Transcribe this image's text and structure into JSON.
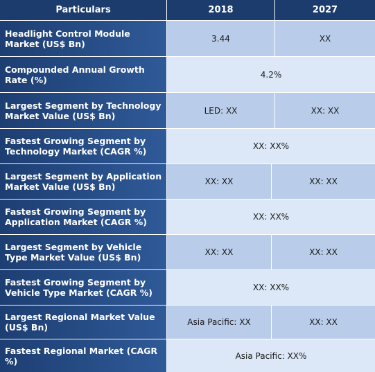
{
  "header": {
    "col0": "Particulars",
    "col1": "2018",
    "col2": "2027"
  },
  "rows": [
    {
      "label": "Headlight Control Module Market (US$ Bn)",
      "v2018": "3.44",
      "v2027": "XX"
    },
    {
      "label": "Compounded Annual Growth Rate (%)",
      "merged": "4.2%"
    },
    {
      "label": "Largest Segment by Technology Market Value (US$ Bn)",
      "v2018": "LED: XX",
      "v2027": "XX: XX"
    },
    {
      "label": "Fastest Growing Segment by Technology Market (CAGR %)",
      "merged": "XX: XX%"
    },
    {
      "label": "Largest Segment by Application Market Value (US$ Bn)",
      "v2018": "XX: XX",
      "v2027": "XX: XX"
    },
    {
      "label": "Fastest Growing Segment by Application Market (CAGR %)",
      "merged": "XX: XX%"
    },
    {
      "label": "Largest Segment by Vehicle Type Market Value (US$ Bn)",
      "v2018": "XX: XX",
      "v2027": "XX: XX"
    },
    {
      "label": "Fastest Growing Segment by Vehicle Type Market (CAGR %)",
      "merged": "XX: XX%"
    },
    {
      "label": "Largest Regional Market Value (US$ Bn)",
      "v2018": "Asia Pacific: XX",
      "v2027": "XX: XX"
    },
    {
      "label": "Fastest Regional Market (CAGR %)",
      "merged": "Asia Pacific: XX%"
    }
  ]
}
